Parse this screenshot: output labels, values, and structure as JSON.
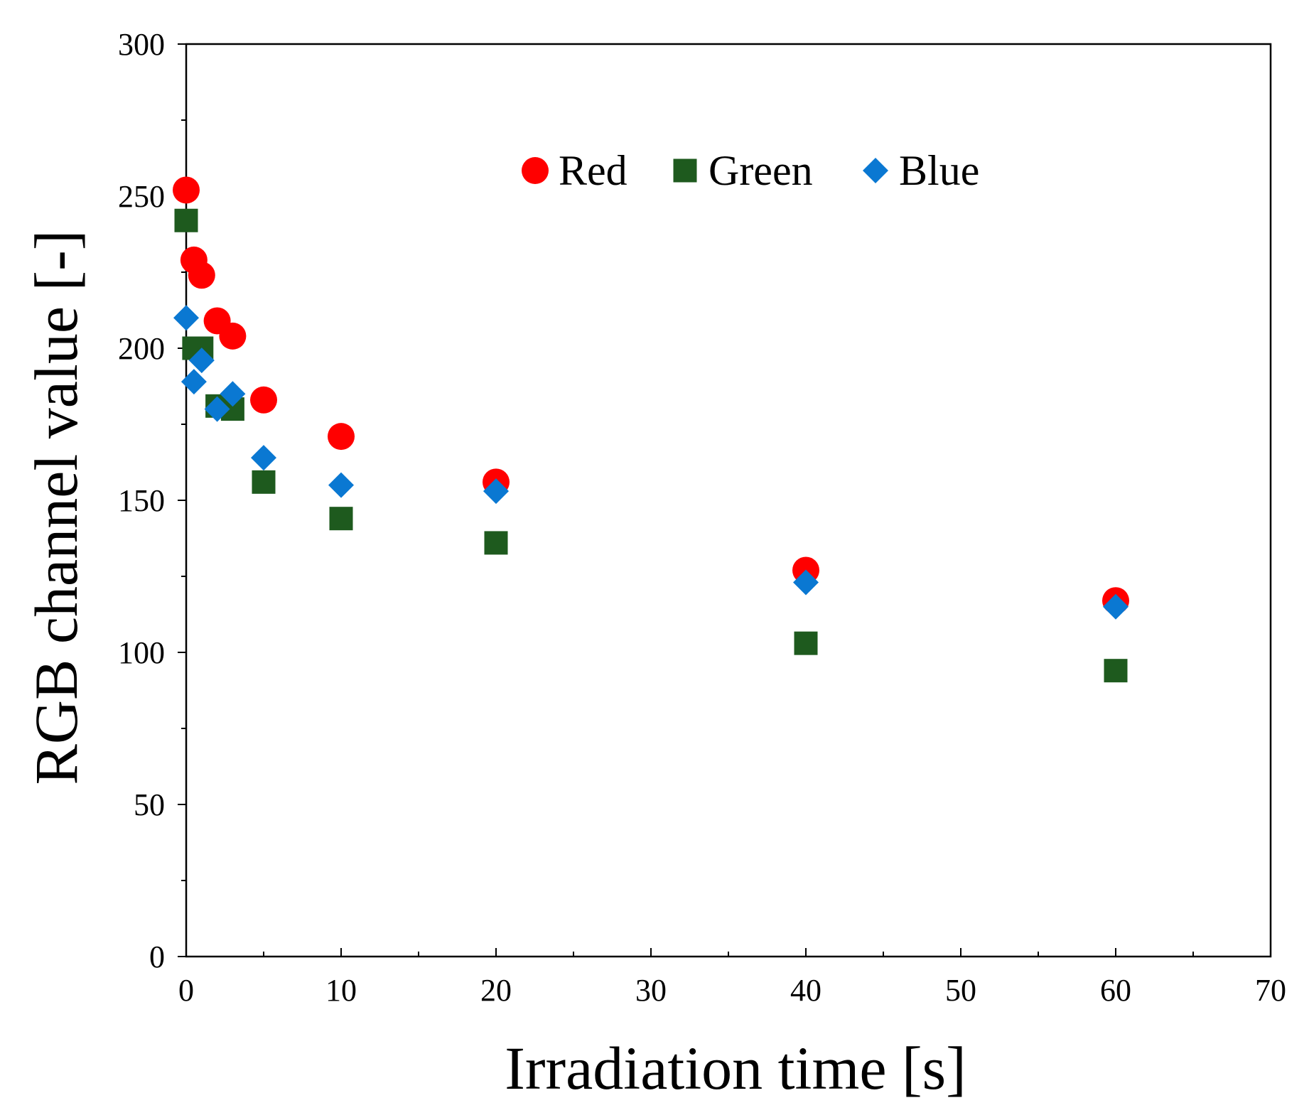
{
  "chart_data": {
    "type": "scatter",
    "title": "",
    "xlabel": "Irradiation time [s]",
    "ylabel": "RGB channel value [-]",
    "xlim": [
      0,
      70
    ],
    "ylim": [
      0,
      300
    ],
    "x_major_ticks": [
      0,
      10,
      20,
      30,
      40,
      50,
      60,
      70
    ],
    "x_minor_step": 5,
    "y_major_ticks": [
      0,
      50,
      100,
      150,
      200,
      250,
      300
    ],
    "y_minor_step": 25,
    "grid": false,
    "legend_position": "top-center",
    "series": [
      {
        "name": "Red",
        "marker": "circle",
        "color": "#ff0000",
        "x": [
          0,
          0.5,
          1,
          2,
          3,
          5,
          10,
          20,
          40,
          60
        ],
        "y": [
          252,
          229,
          224,
          209,
          204,
          183,
          171,
          156,
          127,
          117
        ]
      },
      {
        "name": "Green",
        "marker": "square",
        "color": "#1e5a1e",
        "x": [
          0,
          0.5,
          1,
          2,
          3,
          5,
          10,
          20,
          40,
          60
        ],
        "y": [
          242,
          200,
          200,
          181,
          180,
          156,
          144,
          136,
          103,
          94
        ]
      },
      {
        "name": "Blue",
        "marker": "diamond",
        "color": "#0a78d2",
        "x": [
          0,
          0.5,
          1,
          2,
          3,
          5,
          10,
          20,
          40,
          60
        ],
        "y": [
          210,
          189,
          196,
          180,
          185,
          164,
          155,
          153,
          123,
          115
        ]
      }
    ]
  }
}
